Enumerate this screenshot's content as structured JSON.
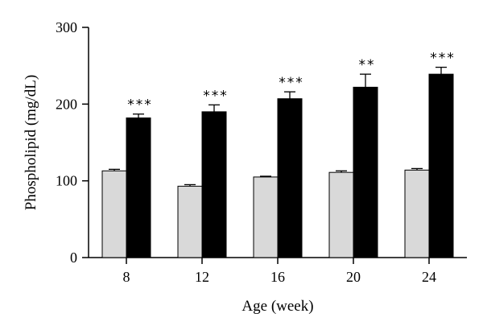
{
  "chart_data": {
    "type": "bar",
    "xlabel": "Age (week)",
    "ylabel": "Phospholipid (mg/dL)",
    "ylim": [
      0,
      300
    ],
    "yticks": [
      0,
      100,
      200,
      300
    ],
    "categories": [
      "8",
      "12",
      "16",
      "20",
      "24"
    ],
    "series": [
      {
        "color": "#d9d9d9",
        "values": [
          113,
          93,
          105,
          111,
          114
        ],
        "errors": [
          2,
          2,
          1,
          2,
          2
        ]
      },
      {
        "color": "#000000",
        "values": [
          182,
          190,
          207,
          222,
          239
        ],
        "errors": [
          5,
          9,
          9,
          17,
          9
        ]
      }
    ],
    "significance": [
      "***",
      "***",
      "***",
      "**",
      "***"
    ],
    "grid": false
  }
}
